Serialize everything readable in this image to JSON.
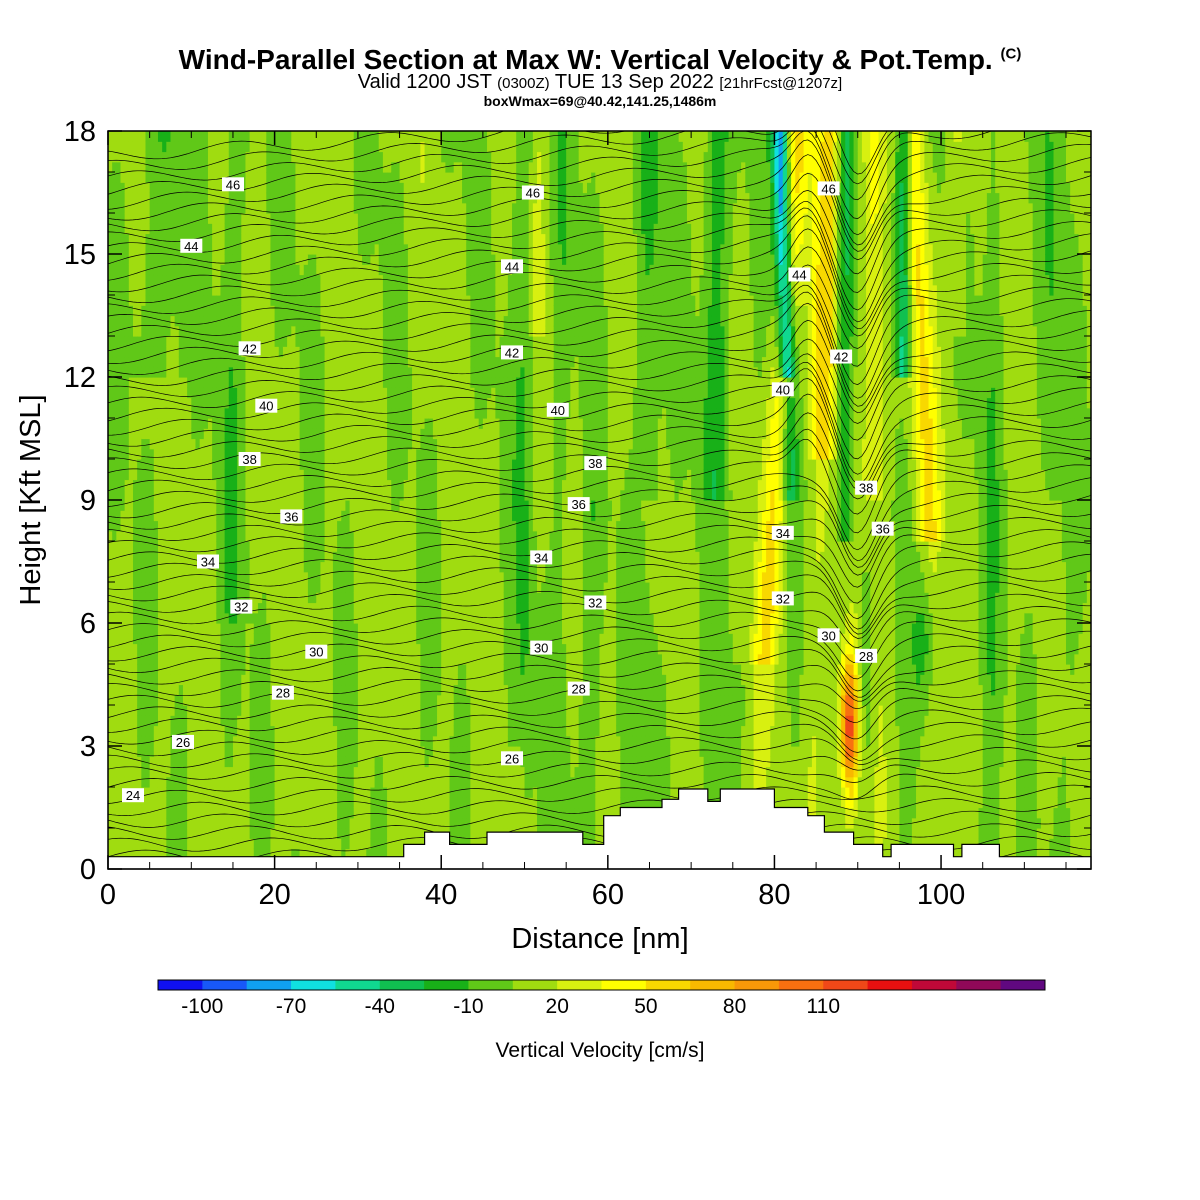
{
  "title": {
    "main": "Wind-Parallel Section at Max W: Vertical Velocity & Pot.Temp.",
    "copyright": "(C)",
    "valid_prefix": "Valid 1200 JST",
    "utc": "(0300Z)",
    "valid_date": "TUE 13 Sep 2022",
    "forecast": "[21hrFcst@1207z]",
    "box_info": "boxWmax=69@40.42,141.25,1486m"
  },
  "chart_data": {
    "type": "heatmap",
    "xlabel": "Distance [nm]",
    "ylabel": "Height [Kft MSL]",
    "xlim": [
      0,
      118
    ],
    "ylim": [
      0,
      18
    ],
    "x_ticks": [
      0,
      20,
      40,
      60,
      80,
      100
    ],
    "y_ticks": [
      0,
      3,
      6,
      9,
      12,
      15,
      18
    ],
    "colorbar": {
      "label": "Vertical Velocity [cm/s]",
      "tick_labels": [
        "-100",
        "-70",
        "-40",
        "-10",
        "20",
        "50",
        "80",
        "110"
      ],
      "colors": [
        "#1010f0",
        "#1858f8",
        "#10a0f0",
        "#10e0e0",
        "#10d890",
        "#10c050",
        "#18b018",
        "#60c818",
        "#a0dc10",
        "#d8f010",
        "#ffff00",
        "#f8d800",
        "#f8b800",
        "#f89808",
        "#f87010",
        "#f04818",
        "#e81010",
        "#c00838",
        "#900858",
        "#600880"
      ]
    },
    "theta_contours": {
      "label_values": [
        "46",
        "44",
        "42",
        "40",
        "38",
        "36",
        "34",
        "32",
        "30",
        "28",
        "26",
        "24"
      ],
      "labels": [
        {
          "text": "46",
          "x": 15,
          "y": 16.7
        },
        {
          "text": "44",
          "x": 10,
          "y": 15.2
        },
        {
          "text": "42",
          "x": 17,
          "y": 12.7
        },
        {
          "text": "40",
          "x": 19,
          "y": 11.3
        },
        {
          "text": "38",
          "x": 17,
          "y": 10.0
        },
        {
          "text": "36",
          "x": 22,
          "y": 8.6
        },
        {
          "text": "34",
          "x": 12,
          "y": 7.5
        },
        {
          "text": "32",
          "x": 16,
          "y": 6.4
        },
        {
          "text": "30",
          "x": 25,
          "y": 5.3
        },
        {
          "text": "28",
          "x": 21,
          "y": 4.3
        },
        {
          "text": "26",
          "x": 9,
          "y": 3.1
        },
        {
          "text": "24",
          "x": 3,
          "y": 1.8
        },
        {
          "text": "46",
          "x": 51,
          "y": 16.5
        },
        {
          "text": "44",
          "x": 48.5,
          "y": 14.7
        },
        {
          "text": "42",
          "x": 48.5,
          "y": 12.6
        },
        {
          "text": "40",
          "x": 54,
          "y": 11.2
        },
        {
          "text": "38",
          "x": 58.5,
          "y": 9.9
        },
        {
          "text": "36",
          "x": 56.5,
          "y": 8.9
        },
        {
          "text": "34",
          "x": 52,
          "y": 7.6
        },
        {
          "text": "32",
          "x": 58.5,
          "y": 6.5
        },
        {
          "text": "30",
          "x": 52,
          "y": 5.4
        },
        {
          "text": "28",
          "x": 56.5,
          "y": 4.4
        },
        {
          "text": "26",
          "x": 48.5,
          "y": 2.7
        },
        {
          "text": "46",
          "x": 86.5,
          "y": 16.6
        },
        {
          "text": "44",
          "x": 83,
          "y": 14.5
        },
        {
          "text": "42",
          "x": 88,
          "y": 12.5
        },
        {
          "text": "40",
          "x": 81,
          "y": 11.7
        },
        {
          "text": "38",
          "x": 91,
          "y": 9.3
        },
        {
          "text": "36",
          "x": 93,
          "y": 8.3
        },
        {
          "text": "34",
          "x": 81,
          "y": 8.2
        },
        {
          "text": "32",
          "x": 81,
          "y": 6.6
        },
        {
          "text": "30",
          "x": 86.5,
          "y": 5.7
        },
        {
          "text": "28",
          "x": 91,
          "y": 5.2
        }
      ]
    },
    "terrain": [
      [
        0,
        0.3
      ],
      [
        35.5,
        0.3
      ],
      [
        35.5,
        0.6
      ],
      [
        38,
        0.6
      ],
      [
        38,
        0.9
      ],
      [
        41,
        0.9
      ],
      [
        41,
        0.6
      ],
      [
        45.5,
        0.6
      ],
      [
        45.5,
        0.9
      ],
      [
        57,
        0.9
      ],
      [
        57,
        0.6
      ],
      [
        59.5,
        0.6
      ],
      [
        59.5,
        1.3
      ],
      [
        61.5,
        1.3
      ],
      [
        61.5,
        1.5
      ],
      [
        66.5,
        1.5
      ],
      [
        66.5,
        1.7
      ],
      [
        68.5,
        1.7
      ],
      [
        68.5,
        1.95
      ],
      [
        72,
        1.95
      ],
      [
        72,
        1.65
      ],
      [
        73.5,
        1.65
      ],
      [
        73.5,
        1.95
      ],
      [
        80,
        1.95
      ],
      [
        80,
        1.5
      ],
      [
        84,
        1.5
      ],
      [
        84,
        1.3
      ],
      [
        86,
        1.3
      ],
      [
        86,
        0.9
      ],
      [
        89.5,
        0.9
      ],
      [
        89.5,
        0.6
      ],
      [
        93,
        0.6
      ],
      [
        93,
        0.3
      ],
      [
        94,
        0.3
      ],
      [
        94,
        0.6
      ],
      [
        101.5,
        0.6
      ],
      [
        101.5,
        0.3
      ],
      [
        102.5,
        0.3
      ],
      [
        102.5,
        0.6
      ],
      [
        107,
        0.6
      ],
      [
        107,
        0.3
      ],
      [
        118,
        0.3
      ]
    ]
  }
}
